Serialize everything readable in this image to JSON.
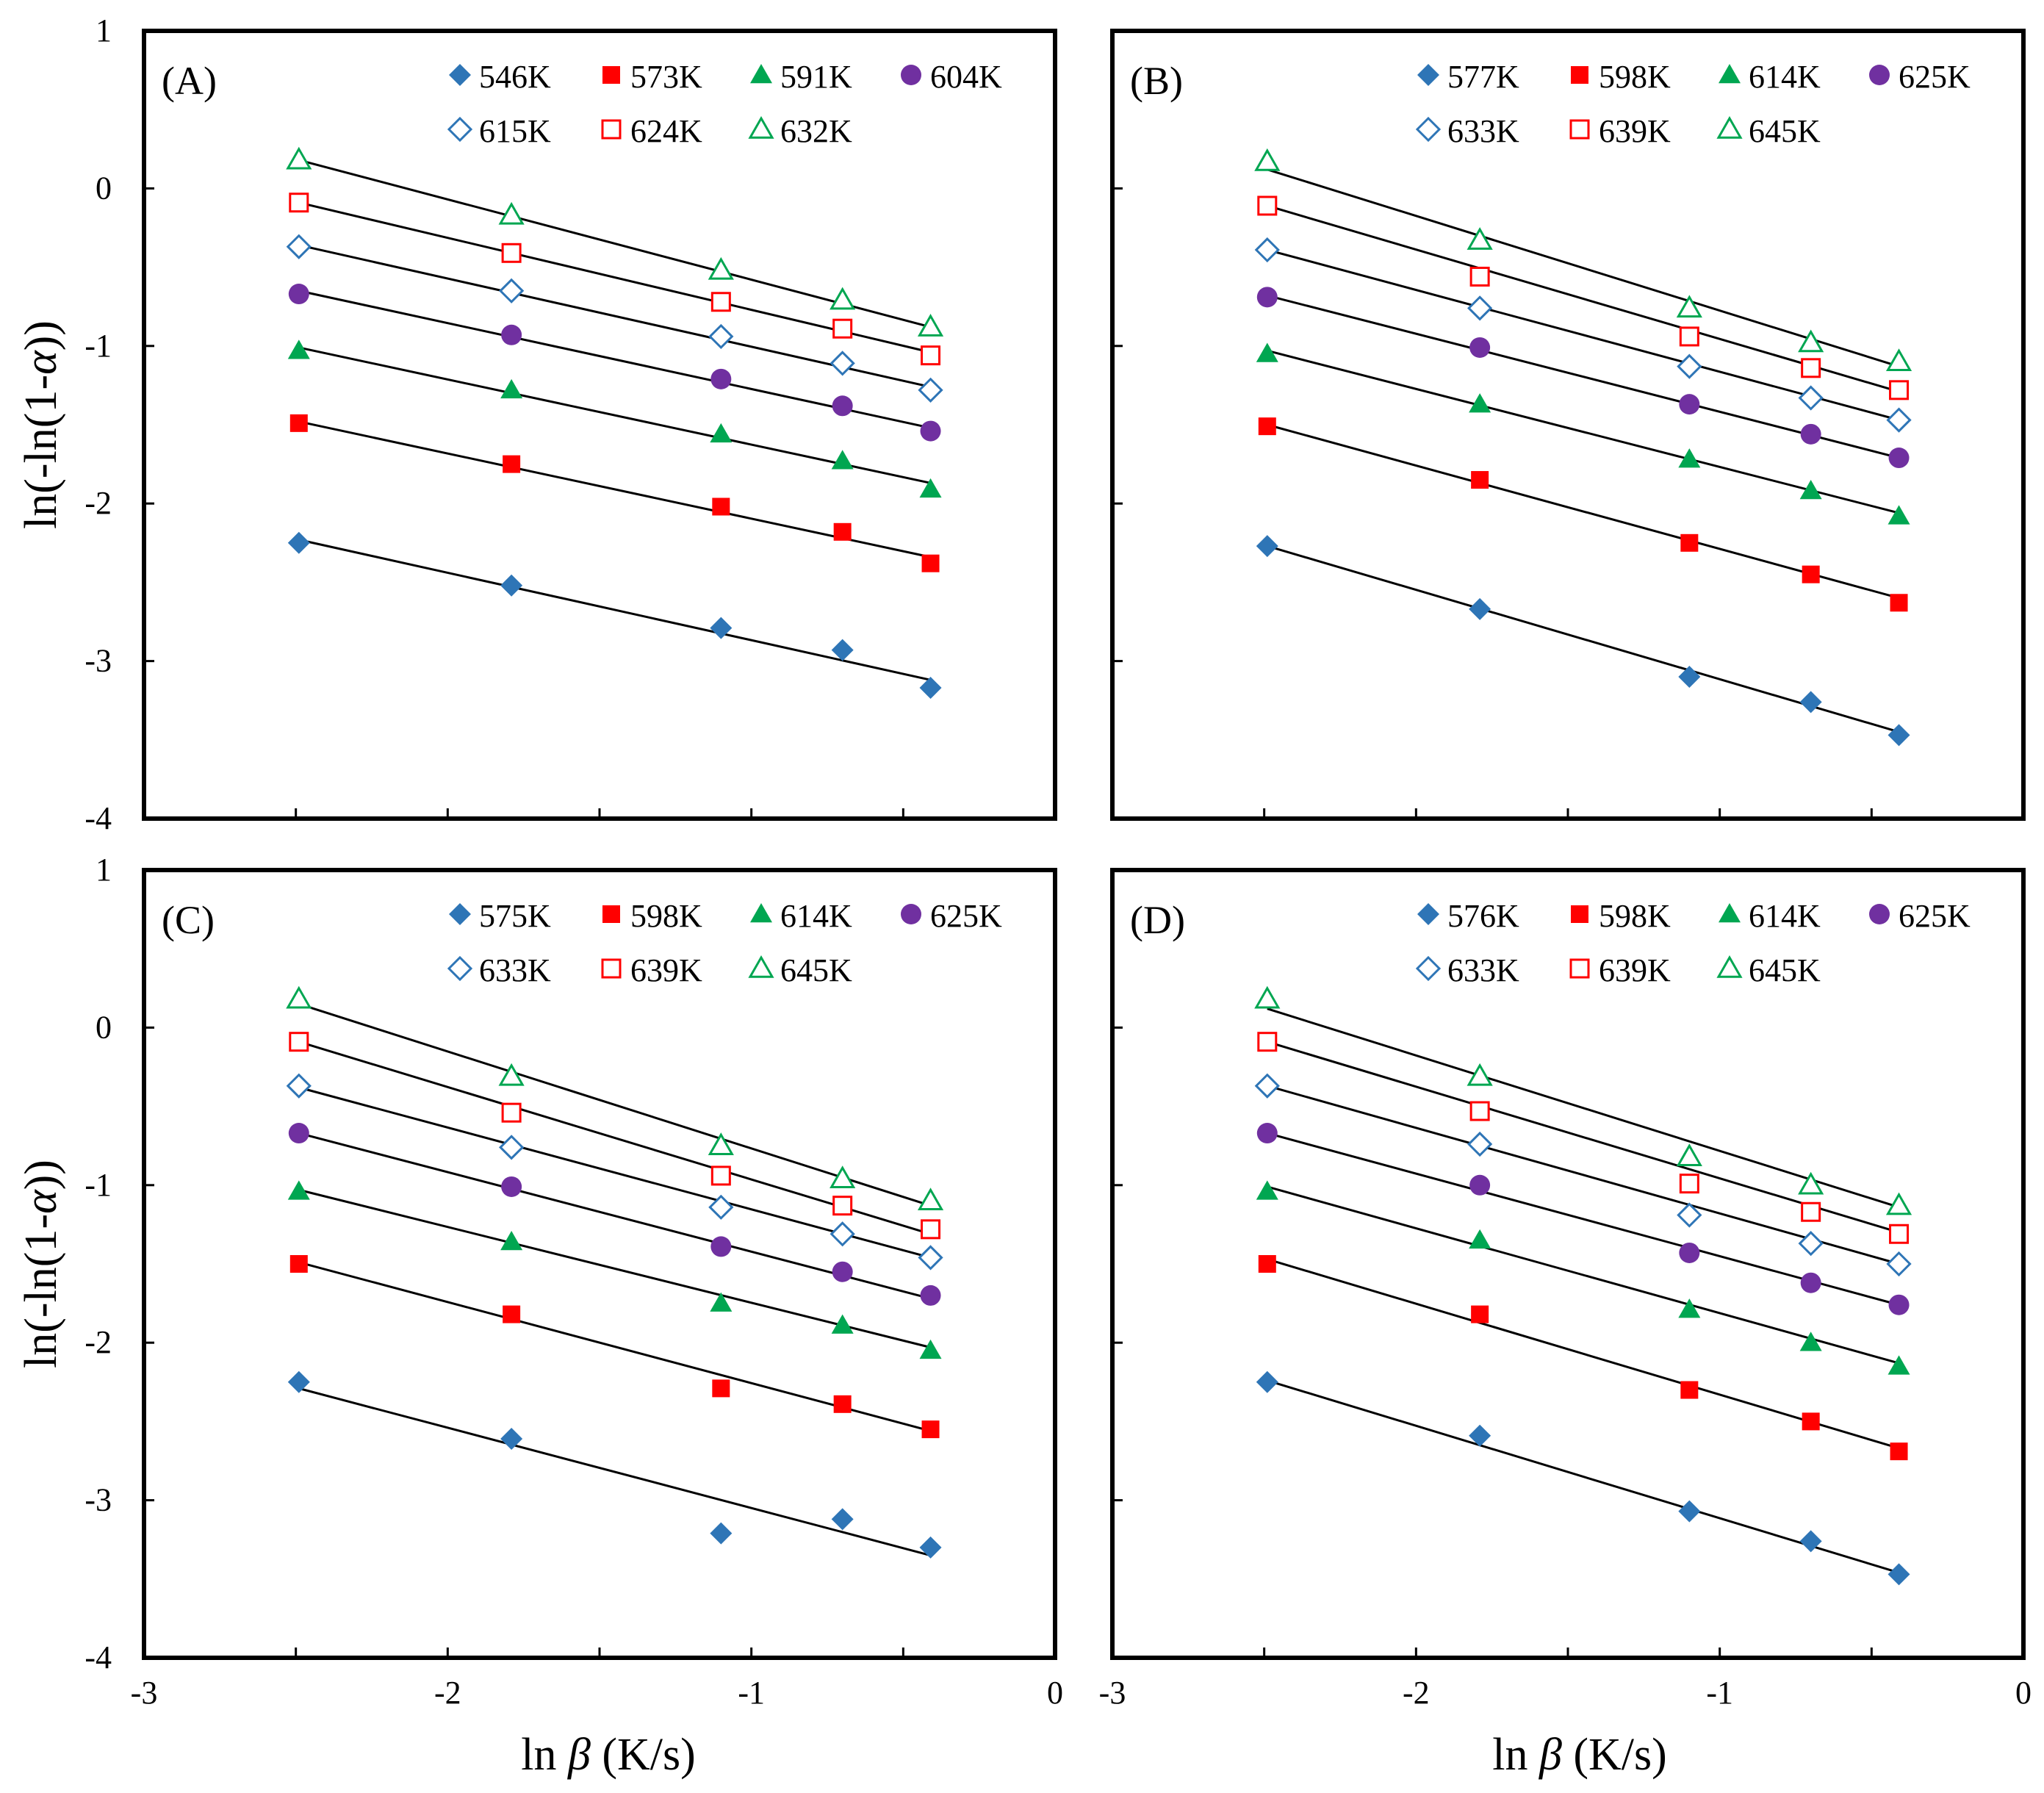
{
  "figure": {
    "xlabel_prefix": "ln ",
    "xlabel_symbol": "β",
    "xlabel_suffix": " (K/s)",
    "ylabel_prefix": "ln(-ln(1-",
    "ylabel_symbol": "α",
    "ylabel_suffix": "))"
  },
  "chart_data": [
    {
      "type": "scatter",
      "panel": "(A)",
      "xlabel": "ln β (K/s)",
      "ylabel": "ln(-ln(1-α))",
      "xlim": [
        -3,
        0
      ],
      "ylim": [
        -4,
        1
      ],
      "xticks": [
        -3,
        -2,
        -1,
        0
      ],
      "yticks": [
        1,
        0,
        -1,
        -2,
        -3,
        -4
      ],
      "grid": false,
      "x": [
        -2.49,
        -1.79,
        -1.1,
        -0.7,
        -0.41
      ],
      "series": [
        {
          "name": "546K",
          "marker": "diamond",
          "filled": true,
          "color": "#2e75b6",
          "values": [
            -2.25,
            -2.52,
            -2.79,
            -2.93,
            -3.17
          ],
          "fit": [
            -2.23,
            -3.12
          ]
        },
        {
          "name": "573K",
          "marker": "square",
          "filled": true,
          "color": "#ff0000",
          "values": [
            -1.49,
            -1.75,
            -2.02,
            -2.18,
            -2.38
          ],
          "fit": [
            -1.48,
            -2.34
          ]
        },
        {
          "name": "591K",
          "marker": "triangle",
          "filled": true,
          "color": "#00a651",
          "values": [
            -1.03,
            -1.28,
            -1.56,
            -1.73,
            -1.91
          ],
          "fit": [
            -1.01,
            -1.87
          ]
        },
        {
          "name": "604K",
          "marker": "circle",
          "filled": true,
          "color": "#7030a0",
          "values": [
            -0.67,
            -0.93,
            -1.21,
            -1.38,
            -1.54
          ],
          "fit": [
            -0.65,
            -1.52
          ]
        },
        {
          "name": "615K",
          "marker": "diamond",
          "filled": false,
          "color": "#2e75b6",
          "values": [
            -0.37,
            -0.65,
            -0.94,
            -1.11,
            -1.28
          ],
          "fit": [
            -0.36,
            -1.26
          ]
        },
        {
          "name": "624K",
          "marker": "square",
          "filled": false,
          "color": "#ff0000",
          "values": [
            -0.09,
            -0.41,
            -0.72,
            -0.89,
            -1.06
          ],
          "fit": [
            -0.09,
            -1.04
          ]
        },
        {
          "name": "632K",
          "marker": "triangle",
          "filled": false,
          "color": "#00a651",
          "values": [
            0.18,
            -0.17,
            -0.52,
            -0.71,
            -0.88
          ],
          "fit": [
            0.18,
            -0.88
          ]
        }
      ]
    },
    {
      "type": "scatter",
      "panel": "(B)",
      "xlabel": "ln β (K/s)",
      "ylabel": "ln(-ln(1-α))",
      "xlim": [
        -3,
        0
      ],
      "ylim": [
        -4,
        1
      ],
      "xticks": [
        -3,
        -2,
        -1,
        0
      ],
      "yticks": [
        1,
        0,
        -1,
        -2,
        -3,
        -4
      ],
      "grid": false,
      "x": [
        -2.49,
        -1.79,
        -1.1,
        -0.7,
        -0.41
      ],
      "series": [
        {
          "name": "577K",
          "marker": "diamond",
          "filled": true,
          "color": "#2e75b6",
          "values": [
            -2.27,
            -2.67,
            -3.1,
            -3.26,
            -3.47
          ],
          "fit": [
            -2.27,
            -3.45
          ]
        },
        {
          "name": "598K",
          "marker": "square",
          "filled": true,
          "color": "#ff0000",
          "values": [
            -1.51,
            -1.85,
            -2.25,
            -2.45,
            -2.63
          ],
          "fit": [
            -1.5,
            -2.6
          ]
        },
        {
          "name": "614K",
          "marker": "triangle",
          "filled": true,
          "color": "#00a651",
          "values": [
            -1.05,
            -1.37,
            -1.72,
            -1.92,
            -2.08
          ],
          "fit": [
            -1.03,
            -2.06
          ]
        },
        {
          "name": "625K",
          "marker": "circle",
          "filled": true,
          "color": "#7030a0",
          "values": [
            -0.69,
            -1.01,
            -1.37,
            -1.56,
            -1.71
          ],
          "fit": [
            -0.68,
            -1.71
          ]
        },
        {
          "name": "633K",
          "marker": "diamond",
          "filled": false,
          "color": "#2e75b6",
          "values": [
            -0.39,
            -0.76,
            -1.13,
            -1.33,
            -1.47
          ],
          "fit": [
            -0.39,
            -1.47
          ]
        },
        {
          "name": "639K",
          "marker": "square",
          "filled": false,
          "color": "#ff0000",
          "values": [
            -0.11,
            -0.56,
            -0.94,
            -1.14,
            -1.28
          ],
          "fit": [
            -0.11,
            -1.29
          ]
        },
        {
          "name": "645K",
          "marker": "triangle",
          "filled": false,
          "color": "#00a651",
          "values": [
            0.17,
            -0.33,
            -0.76,
            -0.98,
            -1.1
          ],
          "fit": [
            0.12,
            -1.13
          ]
        }
      ]
    },
    {
      "type": "scatter",
      "panel": "(C)",
      "xlabel": "ln β (K/s)",
      "ylabel": "ln(-ln(1-α))",
      "xlim": [
        -3,
        0
      ],
      "ylim": [
        -4,
        1
      ],
      "xticks": [
        -3,
        -2,
        -1,
        0
      ],
      "yticks": [
        1,
        0,
        -1,
        -2,
        -3,
        -4
      ],
      "grid": false,
      "x": [
        -2.49,
        -1.79,
        -1.1,
        -0.7,
        -0.41
      ],
      "series": [
        {
          "name": "575K",
          "marker": "diamond",
          "filled": true,
          "color": "#2e75b6",
          "values": [
            -2.25,
            -2.61,
            -3.21,
            -3.12,
            -3.3
          ],
          "fit": [
            -2.29,
            -3.35
          ]
        },
        {
          "name": "598K",
          "marker": "square",
          "filled": true,
          "color": "#ff0000",
          "values": [
            -1.5,
            -1.82,
            -2.29,
            -2.39,
            -2.55
          ],
          "fit": [
            -1.49,
            -2.56
          ]
        },
        {
          "name": "614K",
          "marker": "triangle",
          "filled": true,
          "color": "#00a651",
          "values": [
            -1.04,
            -1.36,
            -1.75,
            -1.89,
            -2.05
          ],
          "fit": [
            -1.03,
            -2.03
          ]
        },
        {
          "name": "625K",
          "marker": "circle",
          "filled": true,
          "color": "#7030a0",
          "values": [
            -0.67,
            -1.01,
            -1.39,
            -1.55,
            -1.7
          ],
          "fit": [
            -0.67,
            -1.72
          ]
        },
        {
          "name": "633K",
          "marker": "diamond",
          "filled": false,
          "color": "#2e75b6",
          "values": [
            -0.37,
            -0.76,
            -1.14,
            -1.31,
            -1.46
          ],
          "fit": [
            -0.38,
            -1.46
          ]
        },
        {
          "name": "639K",
          "marker": "square",
          "filled": false,
          "color": "#ff0000",
          "values": [
            -0.09,
            -0.54,
            -0.94,
            -1.13,
            -1.28
          ],
          "fit": [
            -0.09,
            -1.31
          ]
        },
        {
          "name": "645K",
          "marker": "triangle",
          "filled": false,
          "color": "#00a651",
          "values": [
            0.18,
            -0.31,
            -0.75,
            -0.96,
            -1.1
          ],
          "fit": [
            0.15,
            -1.13
          ]
        }
      ]
    },
    {
      "type": "scatter",
      "panel": "(D)",
      "xlabel": "ln β (K/s)",
      "ylabel": "ln(-ln(1-α))",
      "xlim": [
        -3,
        0
      ],
      "ylim": [
        -4,
        1
      ],
      "xticks": [
        -3,
        -2,
        -1,
        0
      ],
      "yticks": [
        1,
        0,
        -1,
        -2,
        -3,
        -4
      ],
      "grid": false,
      "x": [
        -2.49,
        -1.79,
        -1.1,
        -0.7,
        -0.41
      ],
      "series": [
        {
          "name": "576K",
          "marker": "diamond",
          "filled": true,
          "color": "#2e75b6",
          "values": [
            -2.25,
            -2.59,
            -3.07,
            -3.26,
            -3.47
          ],
          "fit": [
            -2.24,
            -3.46
          ]
        },
        {
          "name": "598K",
          "marker": "square",
          "filled": true,
          "color": "#ff0000",
          "values": [
            -1.5,
            -1.82,
            -2.3,
            -2.5,
            -2.69
          ],
          "fit": [
            -1.47,
            -2.67
          ]
        },
        {
          "name": "614K",
          "marker": "triangle",
          "filled": true,
          "color": "#00a651",
          "values": [
            -1.04,
            -1.35,
            -1.79,
            -2.0,
            -2.15
          ],
          "fit": [
            -1.01,
            -2.13
          ]
        },
        {
          "name": "625K",
          "marker": "circle",
          "filled": true,
          "color": "#7030a0",
          "values": [
            -0.67,
            -1.0,
            -1.43,
            -1.62,
            -1.76
          ],
          "fit": [
            -0.67,
            -1.76
          ]
        },
        {
          "name": "633K",
          "marker": "diamond",
          "filled": false,
          "color": "#2e75b6",
          "values": [
            -0.37,
            -0.74,
            -1.19,
            -1.37,
            -1.5
          ],
          "fit": [
            -0.37,
            -1.5
          ]
        },
        {
          "name": "639K",
          "marker": "square",
          "filled": false,
          "color": "#ff0000",
          "values": [
            -0.09,
            -0.53,
            -0.99,
            -1.17,
            -1.31
          ],
          "fit": [
            -0.09,
            -1.3
          ]
        },
        {
          "name": "645K",
          "marker": "triangle",
          "filled": false,
          "color": "#00a651",
          "values": [
            0.18,
            -0.31,
            -0.82,
            -1.0,
            -1.13
          ],
          "fit": [
            0.12,
            -1.14
          ]
        }
      ]
    }
  ]
}
